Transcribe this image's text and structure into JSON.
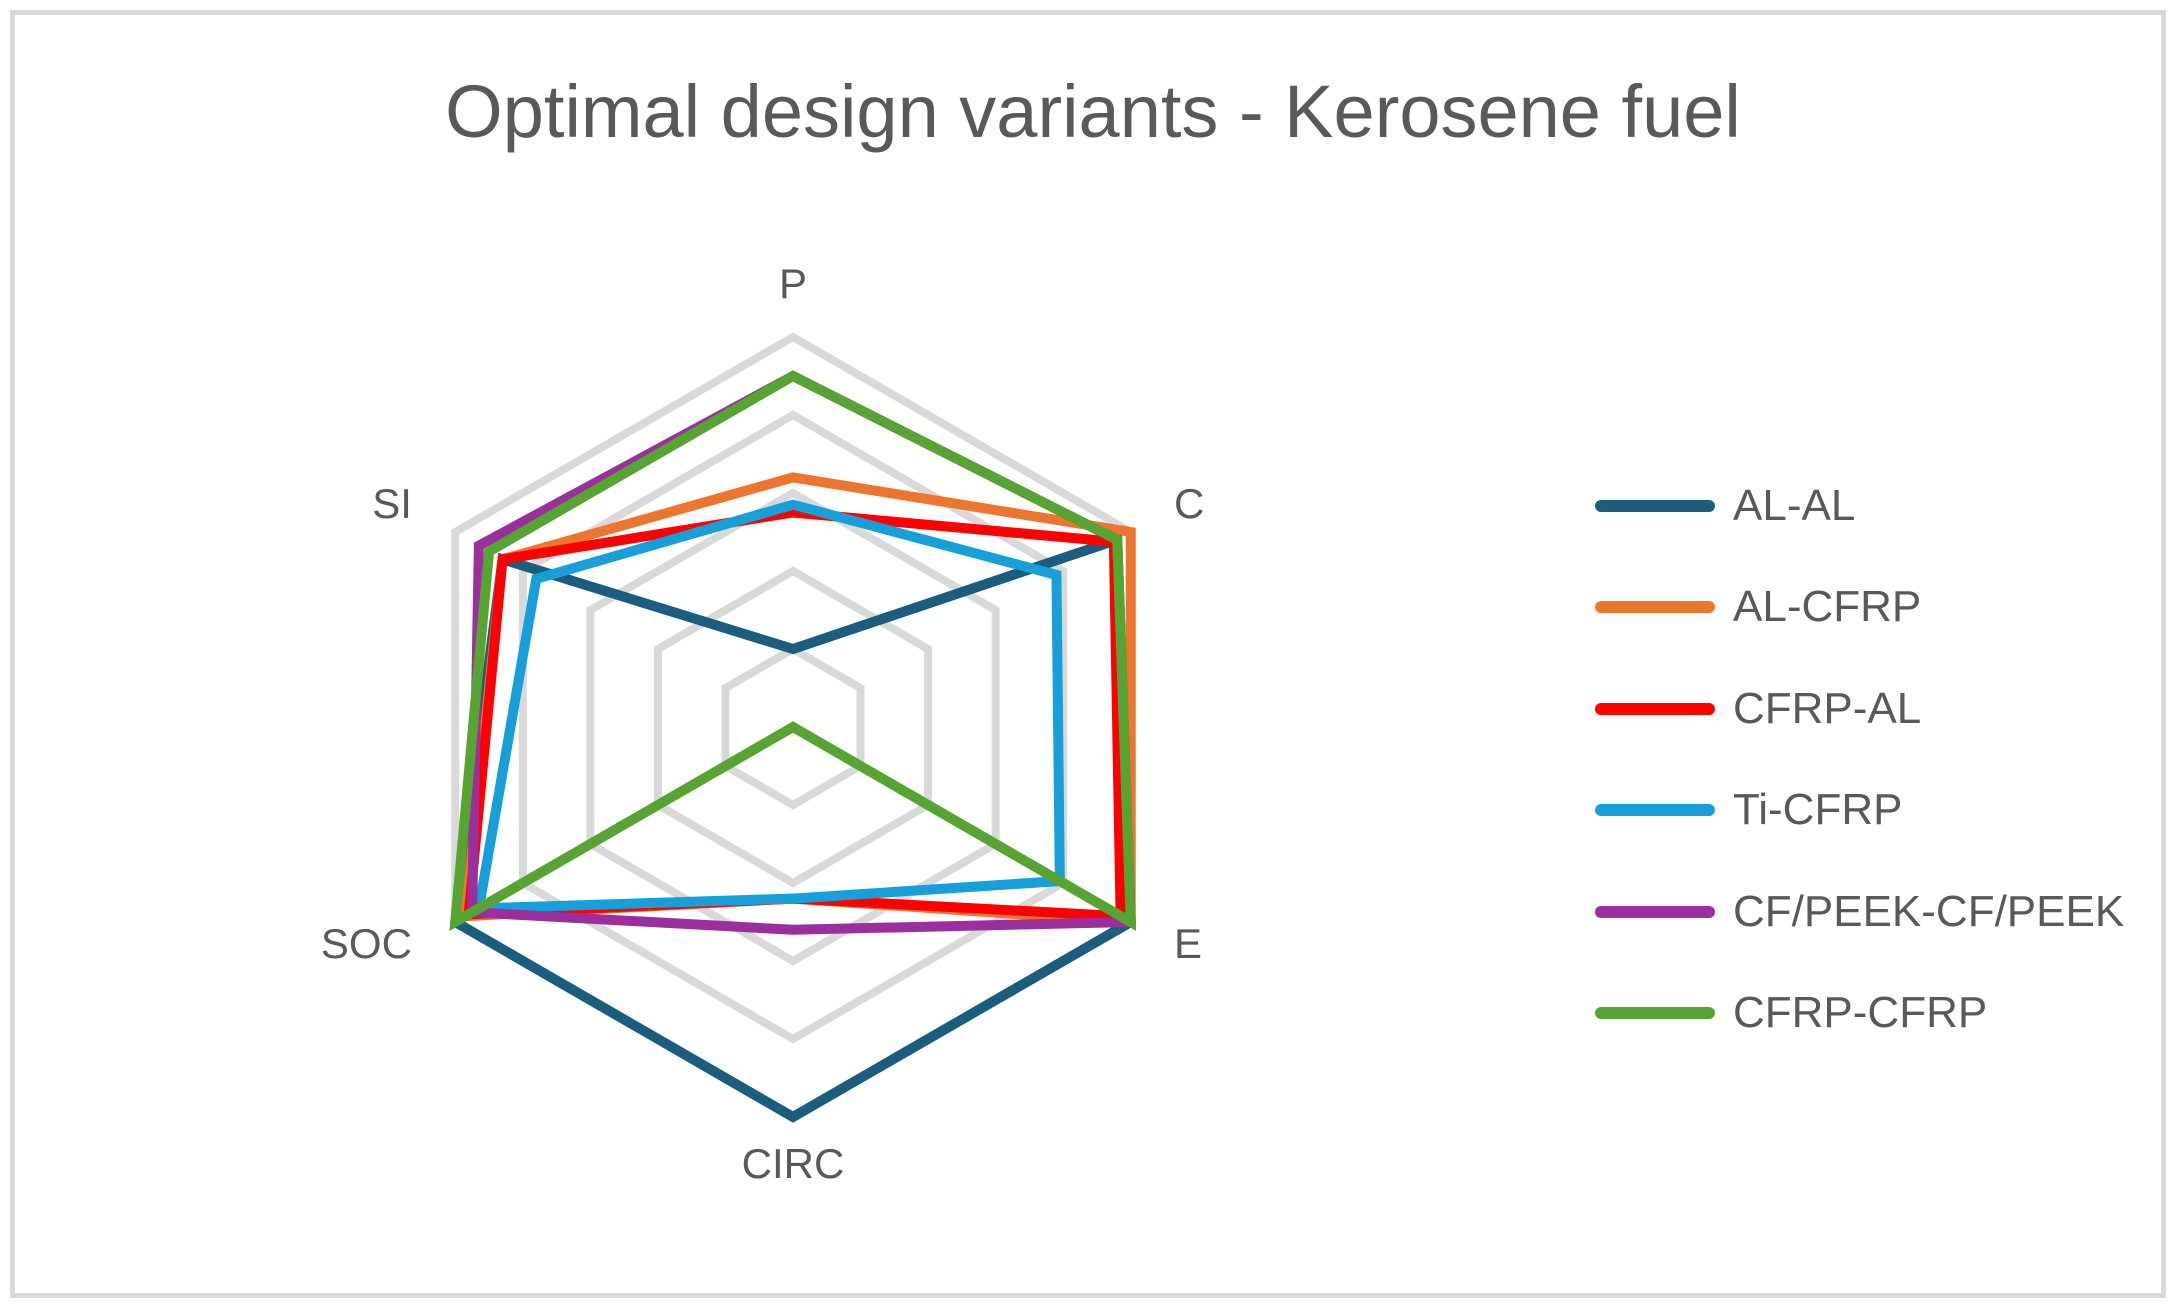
{
  "chart_data": {
    "type": "radar",
    "title": "Optimal design variants - Kerosene fuel",
    "axes": [
      "P",
      "C",
      "E",
      "CIRC",
      "SOC",
      "SI"
    ],
    "range": [
      0,
      1
    ],
    "rings": 5,
    "grid": true,
    "legend_position": "right",
    "series": [
      {
        "name": "AL-AL",
        "color": "#1b5d7f",
        "values": [
          0.2,
          0.96,
          1.0,
          1.0,
          1.0,
          0.86
        ]
      },
      {
        "name": "AL-CFRP",
        "color": "#ec7530",
        "values": [
          0.64,
          1.0,
          1.0,
          0.44,
          0.97,
          0.86
        ]
      },
      {
        "name": "CFRP-AL",
        "color": "#ff0000",
        "values": [
          0.55,
          0.95,
          0.97,
          0.44,
          0.96,
          0.86
        ]
      },
      {
        "name": "Ti-CFRP",
        "color": "#169fd9",
        "values": [
          0.57,
          0.78,
          0.79,
          0.44,
          0.93,
          0.76
        ]
      },
      {
        "name": "CF/PEEK-CF/PEEK",
        "color": "#9b2f9e",
        "values": [
          0.9,
          0.96,
          1.0,
          0.52,
          0.95,
          0.93
        ]
      },
      {
        "name": "CFRP-CFRP",
        "color": "#56a532",
        "values": [
          0.9,
          0.96,
          1.0,
          0.0,
          1.0,
          0.9
        ]
      }
    ]
  }
}
